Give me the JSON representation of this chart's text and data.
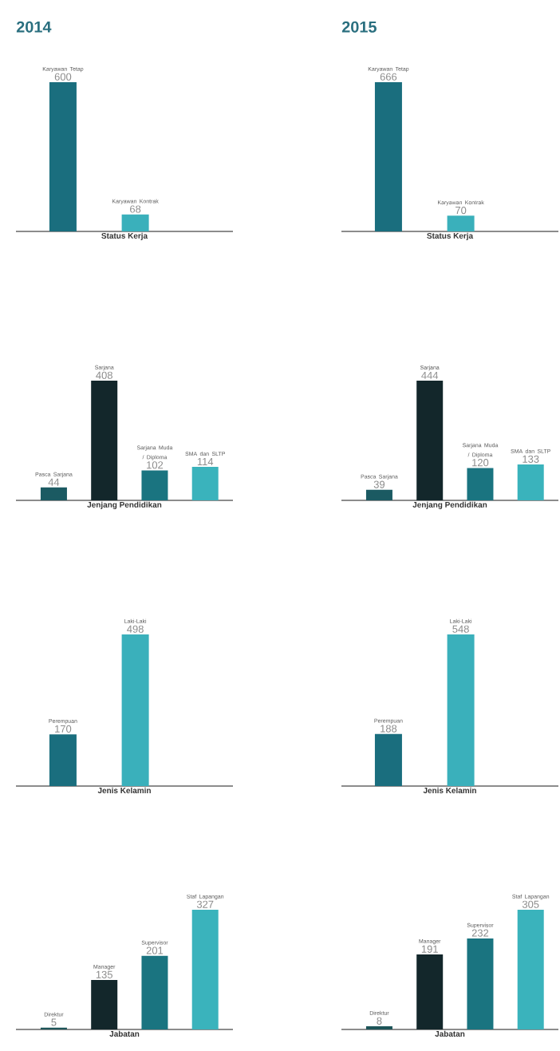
{
  "chart_data": [
    {
      "type": "bar",
      "title": "2014",
      "categories": [
        "Karyawan Tetap",
        "Karyawan Kontrak"
      ],
      "values": [
        600,
        68
      ],
      "colors": [
        "#1a6e7e",
        "#3ab0bb"
      ],
      "xlabel": "Status Kerja",
      "data_labels": true
    },
    {
      "type": "bar",
      "title": "2015",
      "categories": [
        "Karyawan Tetap",
        "Karyawan Kontrak"
      ],
      "values": [
        666,
        70
      ],
      "colors": [
        "#1a6e7e",
        "#3ab0bb"
      ],
      "xlabel": "Status Kerja",
      "data_labels": true
    },
    {
      "type": "bar",
      "categories": [
        "Pasca Sarjana",
        "Sarjana",
        "Sarjana Muda / Diploma",
        "SMA dan SLTP"
      ],
      "values": [
        44,
        408,
        102,
        114
      ],
      "colors": [
        "#1b5a62",
        "#13272b",
        "#1a7480",
        "#3ab3bc"
      ],
      "xlabel": "Jenjang Pendidikan",
      "data_labels": true
    },
    {
      "type": "bar",
      "categories": [
        "Pasca Sarjana",
        "Sarjana",
        "Sarjana Muda / Diploma",
        "SMA dan SLTP"
      ],
      "values": [
        39,
        444,
        120,
        133
      ],
      "colors": [
        "#1b5a62",
        "#13272b",
        "#1a7480",
        "#3ab3bc"
      ],
      "xlabel": "Jenjang Pendidikan",
      "data_labels": true
    },
    {
      "type": "bar",
      "categories": [
        "Perempuan",
        "Laki-Laki"
      ],
      "values": [
        170,
        498
      ],
      "colors": [
        "#1a6e7e",
        "#3ab0bb"
      ],
      "xlabel": "Jenis Kelamin",
      "data_labels": true
    },
    {
      "type": "bar",
      "categories": [
        "Perempuan",
        "Laki-Laki"
      ],
      "values": [
        188,
        548
      ],
      "colors": [
        "#1a6e7e",
        "#3ab0bb"
      ],
      "xlabel": "Jenis Kelamin",
      "data_labels": true
    },
    {
      "type": "bar",
      "categories": [
        "Direktur",
        "Manager",
        "Supervisor",
        "Staf Lapangan"
      ],
      "values": [
        5,
        135,
        201,
        327
      ],
      "colors": [
        "#1d5458",
        "#13272b",
        "#1a7480",
        "#3ab3bc"
      ],
      "xlabel": "Jabatan",
      "data_labels": true
    },
    {
      "type": "bar",
      "categories": [
        "Direktur",
        "Manager",
        "Supervisor",
        "Staf Lapangan"
      ],
      "values": [
        8,
        191,
        232,
        305
      ],
      "colors": [
        "#1d5458",
        "#13272b",
        "#1a7480",
        "#3ab3bc"
      ],
      "xlabel": "Jabatan",
      "data_labels": true
    }
  ]
}
